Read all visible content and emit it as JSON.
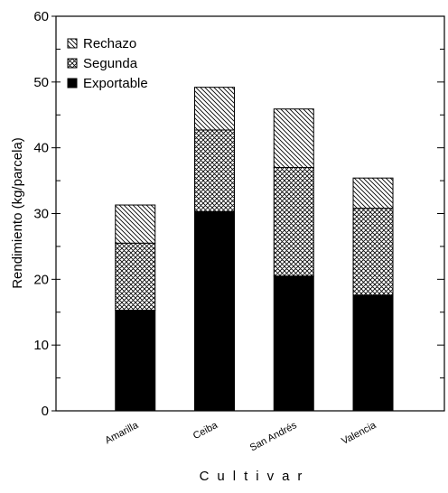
{
  "chart_data": {
    "type": "stacked_bar",
    "y_label": "Rendimiento (kg/parcela)",
    "x_label": "Cultivar",
    "categories": [
      "Amarilla",
      "Ceiba",
      "San Andrés",
      "Valencia"
    ],
    "series": [
      {
        "name": "Exportable",
        "color": "#000000",
        "hatch": "solid",
        "values": [
          15.3,
          30.3,
          20.5,
          17.6
        ]
      },
      {
        "name": "Segunda",
        "color": "#000000",
        "hatch": "cross",
        "values": [
          10.2,
          12.4,
          16.5,
          13.2
        ]
      },
      {
        "name": "Rechazo",
        "color": "#000000",
        "hatch": "diagonal",
        "values": [
          5.8,
          6.5,
          8.9,
          4.6
        ]
      }
    ],
    "ylim": [
      0,
      60
    ],
    "yticks": [
      0,
      10,
      20,
      30,
      40,
      50,
      60
    ],
    "legend": "upper-left"
  }
}
